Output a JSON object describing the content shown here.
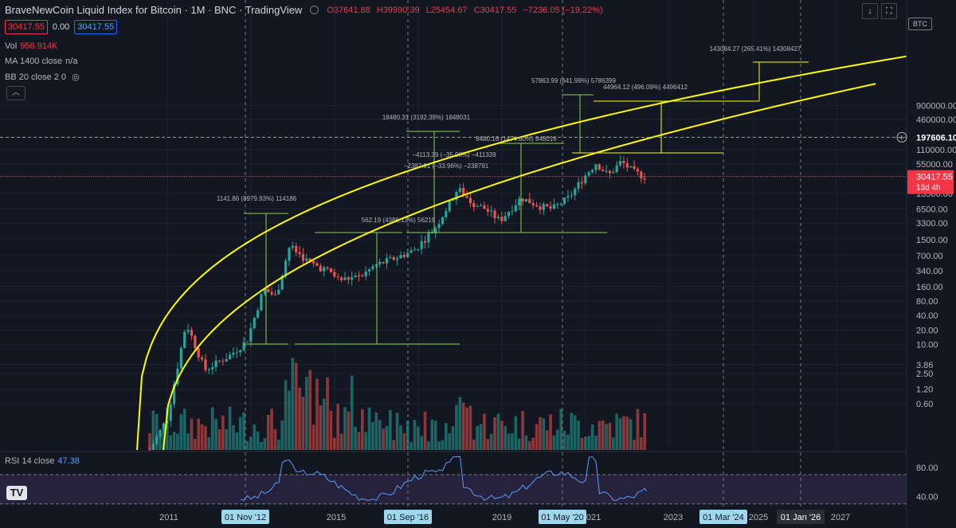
{
  "header": {
    "title": "BraveNewCoin Liquid Index for Bitcoin · 1M · BNC · TradingView",
    "open": "O37641.88",
    "high": "H39990.39",
    "low": "L25454.67",
    "close": "C30417.55",
    "change": "−7236.05 (−19.22%)",
    "sell_price": "30417.55",
    "spread": "0.00",
    "buy_price": "30417.55"
  },
  "indicators": {
    "vol_label": "Vol",
    "vol_value": "956.914K",
    "ma_label": "MA 1400 close",
    "ma_value": "n/a",
    "bb_label": "BB 20 close 2 0",
    "rsi_label": "RSI 14 close",
    "rsi_value": "47.38"
  },
  "toolbar": {
    "down_icon": "arrow-down-icon",
    "fullscreen_icon": "fullscreen-icon"
  },
  "currency_label": "BTC",
  "logo_text": "TV",
  "colors": {
    "bg": "#131722",
    "up": "#26a69a",
    "down": "#ef5350",
    "yellow": "#ffff00",
    "green": "#8bd34a",
    "rsi": "#5b9cf6"
  },
  "chart_data": {
    "type": "candlestick",
    "yscale": "log",
    "price_axis": [
      "900000.00",
      "460000.00",
      "197606.10",
      "110000.00",
      "55000.00",
      "30417.55",
      "13500.00",
      "6500.00",
      "3300.00",
      "1500.00",
      "700.00",
      "340.00",
      "160.00",
      "80.00",
      "40.00",
      "20.00",
      "10.00",
      "3.86",
      "2.50",
      "1.20",
      "0.60"
    ],
    "price_tags": {
      "target": "197606.10",
      "last": "30417.55",
      "last_countdown": "13d 4h"
    },
    "time_axis": [
      "2011",
      "2015",
      "2019",
      "2021",
      "2023",
      "2025",
      "2027"
    ],
    "time_highlights": [
      "01 Nov '12",
      "01 Sep '16",
      "01 May '20",
      "01 Mar '24",
      "01 Jan '26"
    ],
    "measurements": [
      "1141.86 (8979.93%) 114186",
      "562.19 (4386.13%) 56219",
      "18480.31 (3192.39%) 1848031",
      "8480.16 (1474.80%) 848016",
      "−4113.39 (−35.96%) −411339",
      "−2387.91 (−33.96%) −238791",
      "57863.99 (641.99%) 5786399",
      "44964.12 (496.09%) 4496412",
      "143084.27 (265.41%) 14308427"
    ],
    "rsi_axis": [
      "80.00",
      "40.00"
    ],
    "rsi_levels": [
      70,
      30
    ],
    "rsi_last": 47.38,
    "last_close": 30417.55
  }
}
